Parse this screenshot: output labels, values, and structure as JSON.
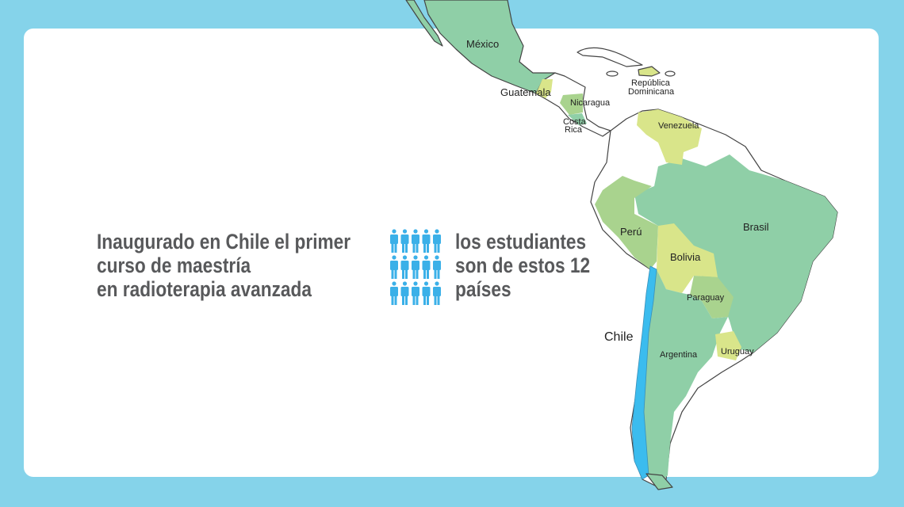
{
  "headline": {
    "lines": [
      "Inaugurado en Chile el primer",
      "curso de maestría",
      "en radioterapia avanzada"
    ]
  },
  "stat": {
    "icon": "people-icon",
    "people_count_shown": 15,
    "lines": [
      "los estudiantes",
      "son de estos 12",
      "países"
    ]
  },
  "map": {
    "countries": {
      "mexico": "México",
      "guatemala": "Guatemala",
      "nicaragua": "Nicaragua",
      "costa_rica": [
        "Costa",
        "Rica"
      ],
      "republica_dominicana": [
        "República",
        "Dominicana"
      ],
      "venezuela": "Venezuela",
      "peru": "Perú",
      "brasil": "Brasil",
      "bolivia": "Bolivia",
      "paraguay": "Paraguay",
      "chile": "Chile",
      "argentina": "Argentina",
      "uruguay": "Uruguay"
    },
    "colors": {
      "background": "#85d3ea",
      "green": "#8fcfa7",
      "light_green": "#a9d38e",
      "yellow_green": "#d9e58a",
      "chile_blue": "#3bbcee",
      "text": "#58595b"
    }
  }
}
